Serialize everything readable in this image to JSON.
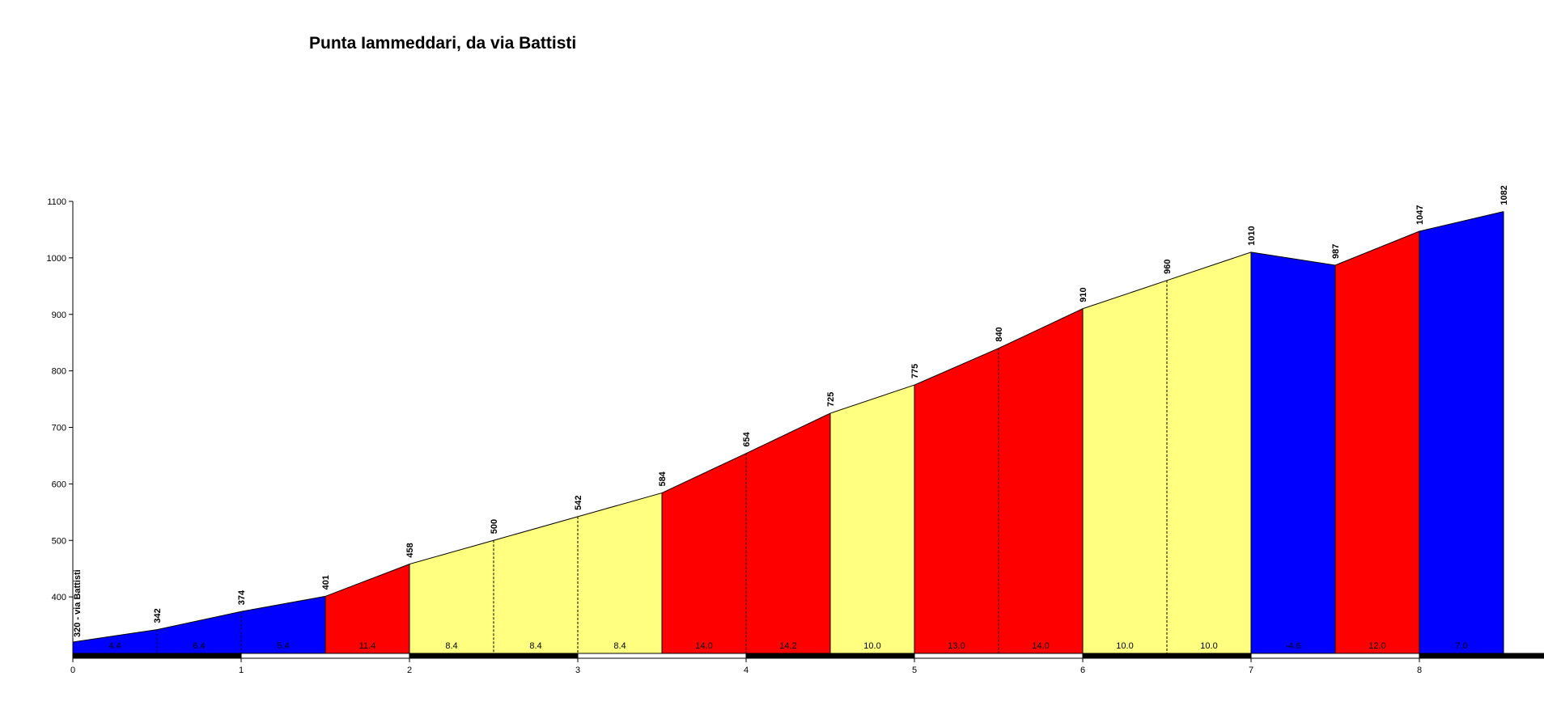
{
  "chart_data": {
    "type": "area",
    "title": "Punta Iammeddari, da via Battisti",
    "xlabel": "",
    "ylabel": "",
    "xlim": [
      0,
      8.5
    ],
    "ylim": [
      300,
      1100
    ],
    "x_ticks": [
      0,
      1,
      2,
      3,
      4,
      5,
      6,
      7,
      8
    ],
    "y_ticks": [
      400,
      500,
      600,
      700,
      800,
      900,
      1000,
      1100
    ],
    "start_label": "320 - via Battisti",
    "points": [
      {
        "x": 0.0,
        "y": 320
      },
      {
        "x": 0.5,
        "y": 342
      },
      {
        "x": 1.0,
        "y": 374
      },
      {
        "x": 1.5,
        "y": 401
      },
      {
        "x": 2.0,
        "y": 458
      },
      {
        "x": 2.5,
        "y": 500
      },
      {
        "x": 3.0,
        "y": 542
      },
      {
        "x": 3.5,
        "y": 584
      },
      {
        "x": 4.0,
        "y": 654
      },
      {
        "x": 4.5,
        "y": 725
      },
      {
        "x": 5.0,
        "y": 775
      },
      {
        "x": 5.5,
        "y": 840
      },
      {
        "x": 6.0,
        "y": 910
      },
      {
        "x": 6.5,
        "y": 960
      },
      {
        "x": 7.0,
        "y": 1010
      },
      {
        "x": 7.5,
        "y": 987
      },
      {
        "x": 8.0,
        "y": 1047
      },
      {
        "x": 8.5,
        "y": 1082
      }
    ],
    "elevation_labels": [
      "",
      "342",
      "374",
      "401",
      "458",
      "500",
      "542",
      "584",
      "654",
      "725",
      "775",
      "840",
      "910",
      "960",
      "1010",
      "987",
      "1047",
      "1082"
    ],
    "segments": [
      {
        "x0": 0.0,
        "x1": 0.5,
        "gradient": "4.4",
        "color": "#0000ff"
      },
      {
        "x0": 0.5,
        "x1": 1.0,
        "gradient": "6.4",
        "color": "#0000ff"
      },
      {
        "x0": 1.0,
        "x1": 1.5,
        "gradient": "5.4",
        "color": "#0000ff"
      },
      {
        "x0": 1.5,
        "x1": 2.0,
        "gradient": "11.4",
        "color": "#ff0000"
      },
      {
        "x0": 2.0,
        "x1": 2.5,
        "gradient": "8.4",
        "color": "#ffff80"
      },
      {
        "x0": 2.5,
        "x1": 3.0,
        "gradient": "8.4",
        "color": "#ffff80"
      },
      {
        "x0": 3.0,
        "x1": 3.5,
        "gradient": "8.4",
        "color": "#ffff80"
      },
      {
        "x0": 3.5,
        "x1": 4.0,
        "gradient": "14.0",
        "color": "#ff0000"
      },
      {
        "x0": 4.0,
        "x1": 4.5,
        "gradient": "14.2",
        "color": "#ff0000"
      },
      {
        "x0": 4.5,
        "x1": 5.0,
        "gradient": "10.0",
        "color": "#ffff80"
      },
      {
        "x0": 5.0,
        "x1": 5.5,
        "gradient": "13.0",
        "color": "#ff0000"
      },
      {
        "x0": 5.5,
        "x1": 6.0,
        "gradient": "14.0",
        "color": "#ff0000"
      },
      {
        "x0": 6.0,
        "x1": 6.5,
        "gradient": "10.0",
        "color": "#ffff80"
      },
      {
        "x0": 6.5,
        "x1": 7.0,
        "gradient": "10.0",
        "color": "#ffff80"
      },
      {
        "x0": 7.0,
        "x1": 7.5,
        "gradient": "-4.6",
        "color": "#0000ff"
      },
      {
        "x0": 7.5,
        "x1": 8.0,
        "gradient": "12.0",
        "color": "#ff0000"
      },
      {
        "x0": 8.0,
        "x1": 8.5,
        "gradient": "7.0",
        "color": "#0000ff"
      }
    ],
    "grid": false,
    "legend": "none"
  }
}
